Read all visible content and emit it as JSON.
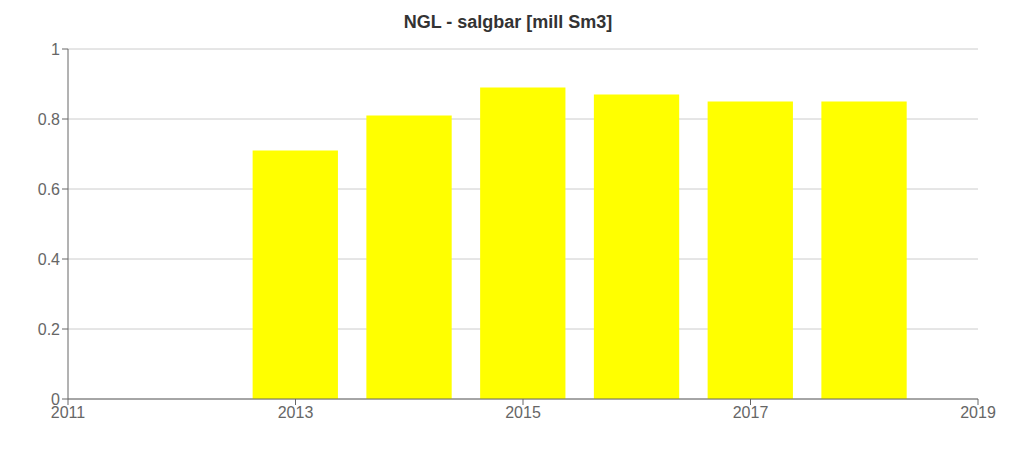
{
  "chart_data": {
    "type": "bar",
    "title": "NGL - salgbar [mill Sm3]",
    "x": [
      2013,
      2014,
      2015,
      2016,
      2017,
      2018
    ],
    "values": [
      0.71,
      0.81,
      0.89,
      0.87,
      0.85,
      0.85
    ],
    "color": "#FFFF00",
    "xlim": [
      2011,
      2019
    ],
    "ylim": [
      0,
      1
    ],
    "xticks": [
      2011,
      2013,
      2015,
      2017,
      2019
    ],
    "yticks": [
      0,
      0.2,
      0.4,
      0.6,
      0.8,
      1
    ],
    "grid": true
  }
}
